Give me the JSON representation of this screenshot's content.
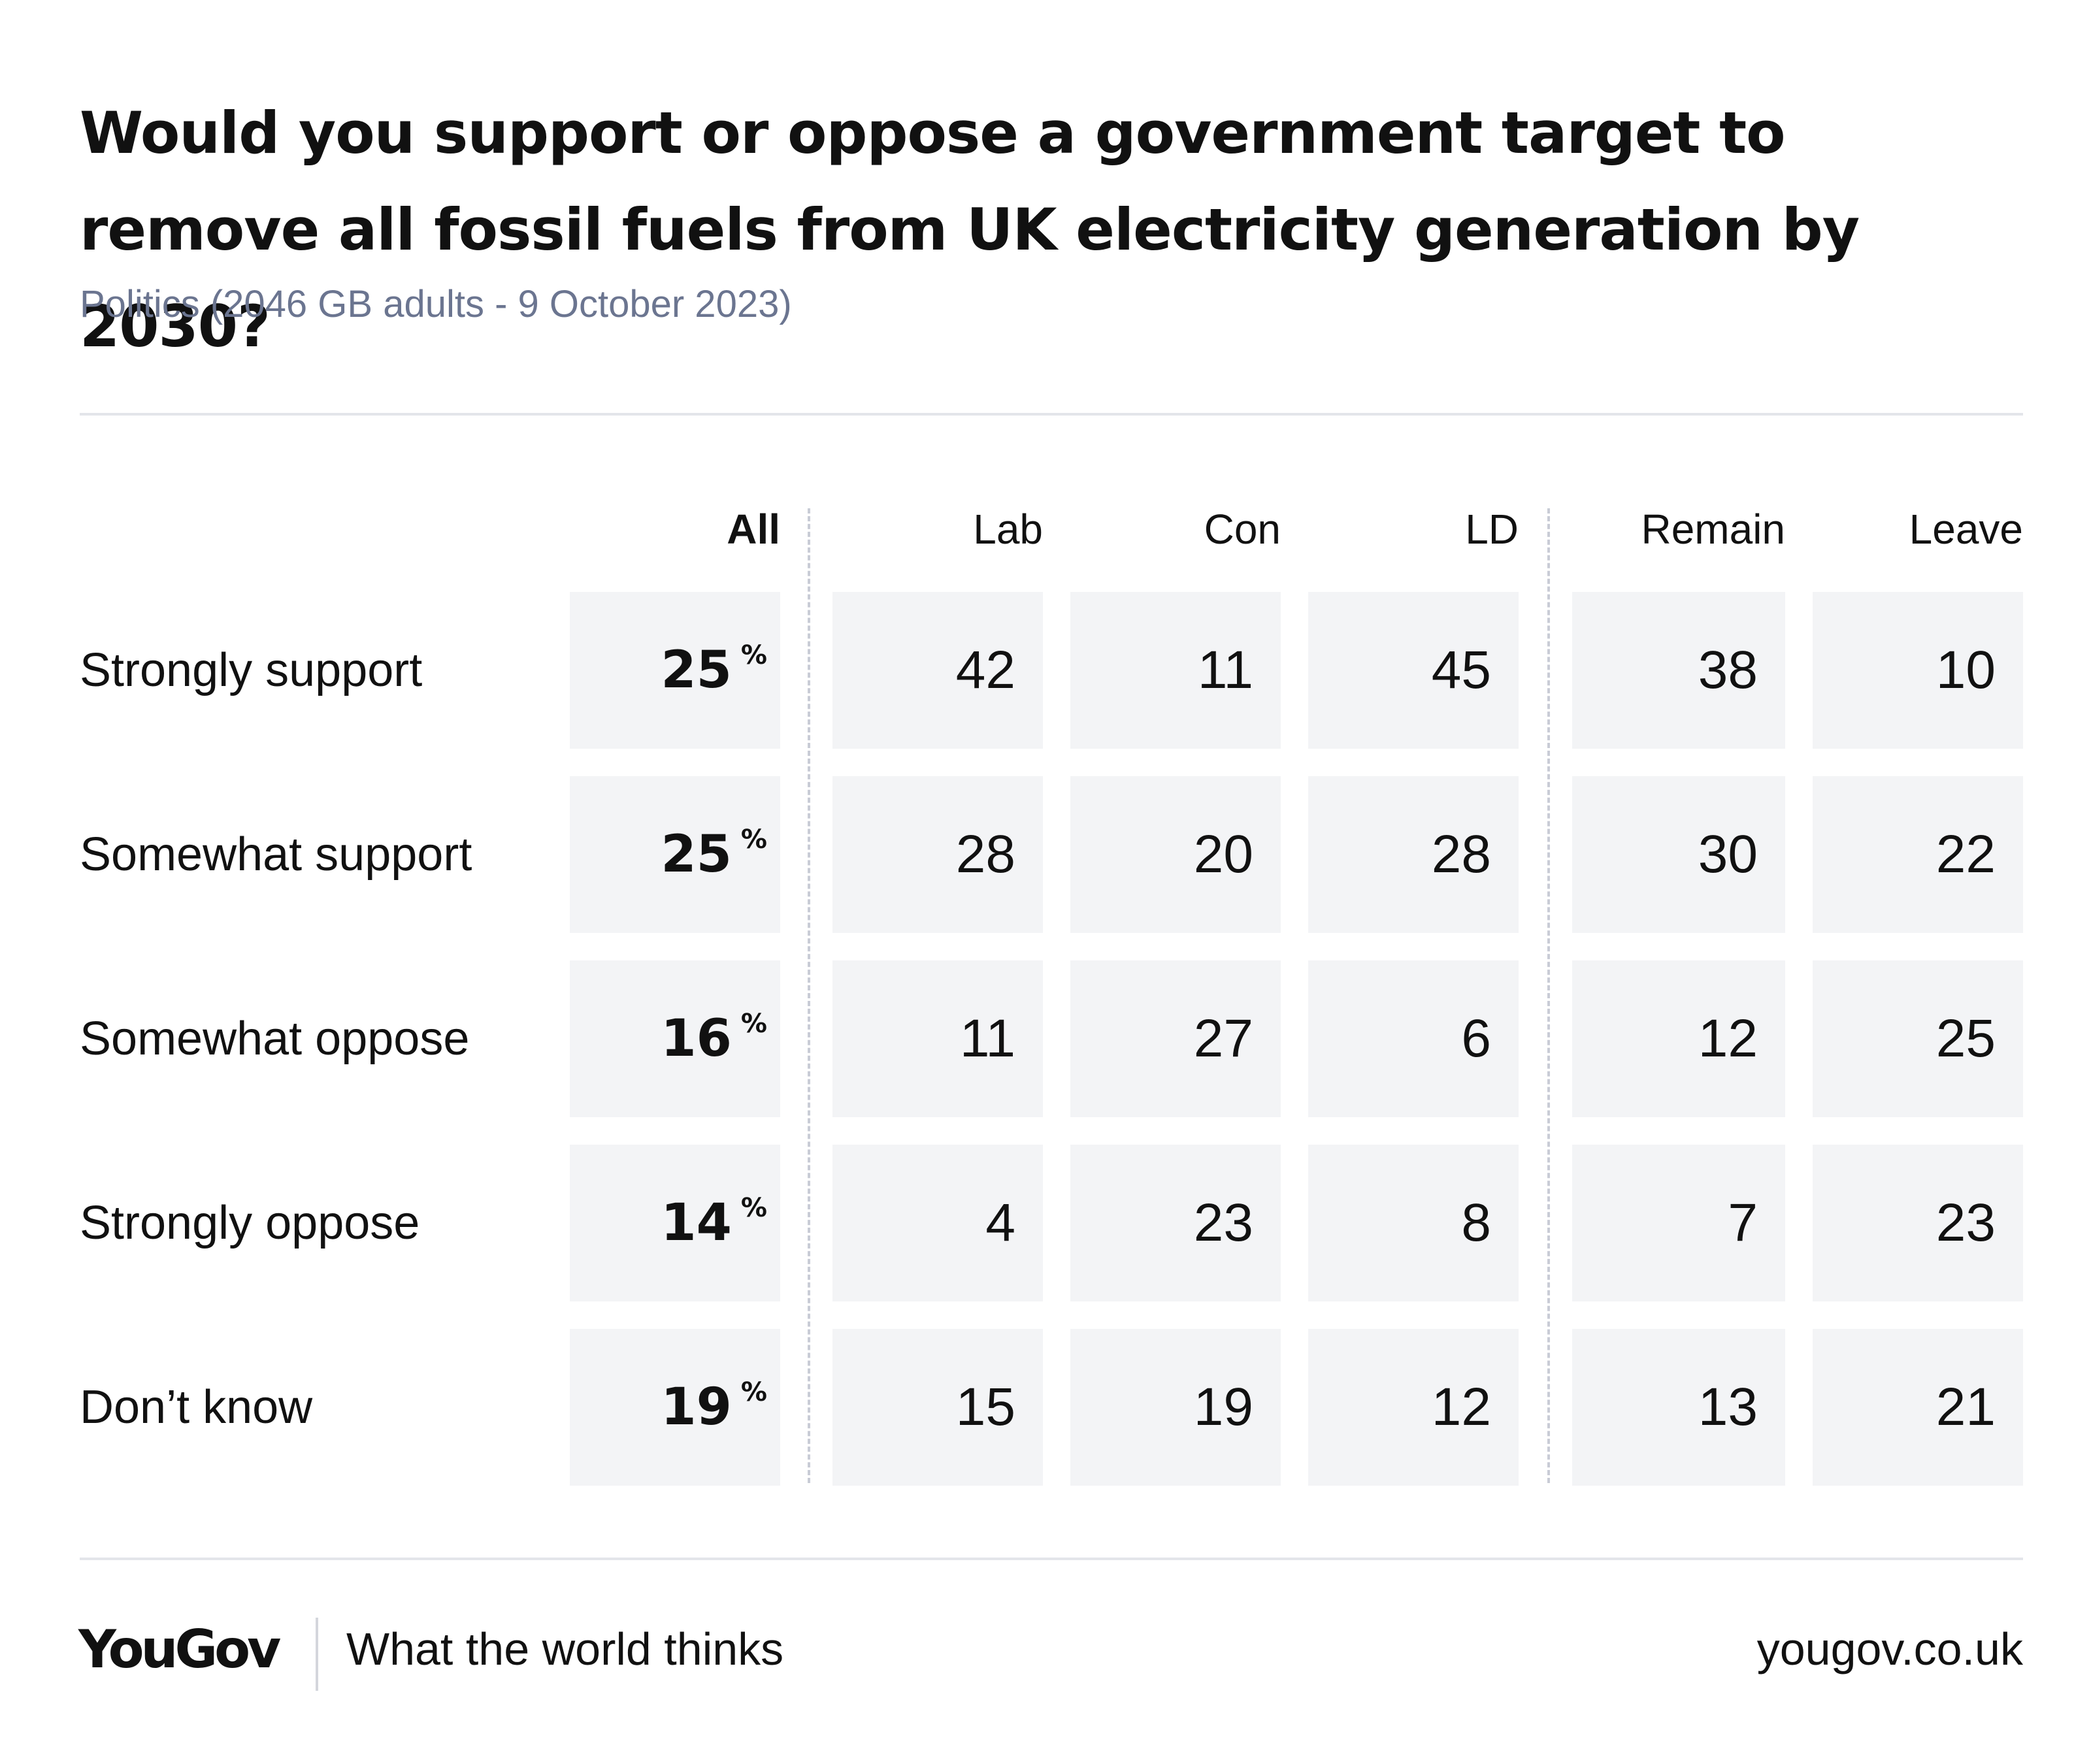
{
  "chart_data": {
    "type": "table",
    "title": "Would you support or oppose a government target to remove all fossil fuels from UK electricity generation by 2030?",
    "subtitle": "Politics (2046 GB adults - 9 October 2023)",
    "columns": [
      "All",
      "Lab",
      "Con",
      "LD",
      "Remain",
      "Leave"
    ],
    "rows": [
      {
        "label": "Strongly support",
        "values": [
          25,
          42,
          11,
          45,
          38,
          10
        ]
      },
      {
        "label": "Somewhat support",
        "values": [
          25,
          28,
          20,
          28,
          30,
          22
        ]
      },
      {
        "label": "Somewhat oppose",
        "values": [
          16,
          11,
          27,
          6,
          12,
          25
        ]
      },
      {
        "label": "Strongly oppose",
        "values": [
          14,
          4,
          23,
          8,
          7,
          23
        ]
      },
      {
        "label": "Don’t know",
        "values": [
          19,
          15,
          19,
          12,
          13,
          21
        ]
      }
    ],
    "unit": "%"
  },
  "footer": {
    "logo": "YouGov",
    "tagline": "What the world thinks",
    "url": "yougov.co.uk"
  },
  "colors": {
    "cell_bg": "#f3f4f6",
    "subtitle": "#6b7590",
    "rule": "#e3e5ea",
    "divider": "#c9ccd6"
  }
}
